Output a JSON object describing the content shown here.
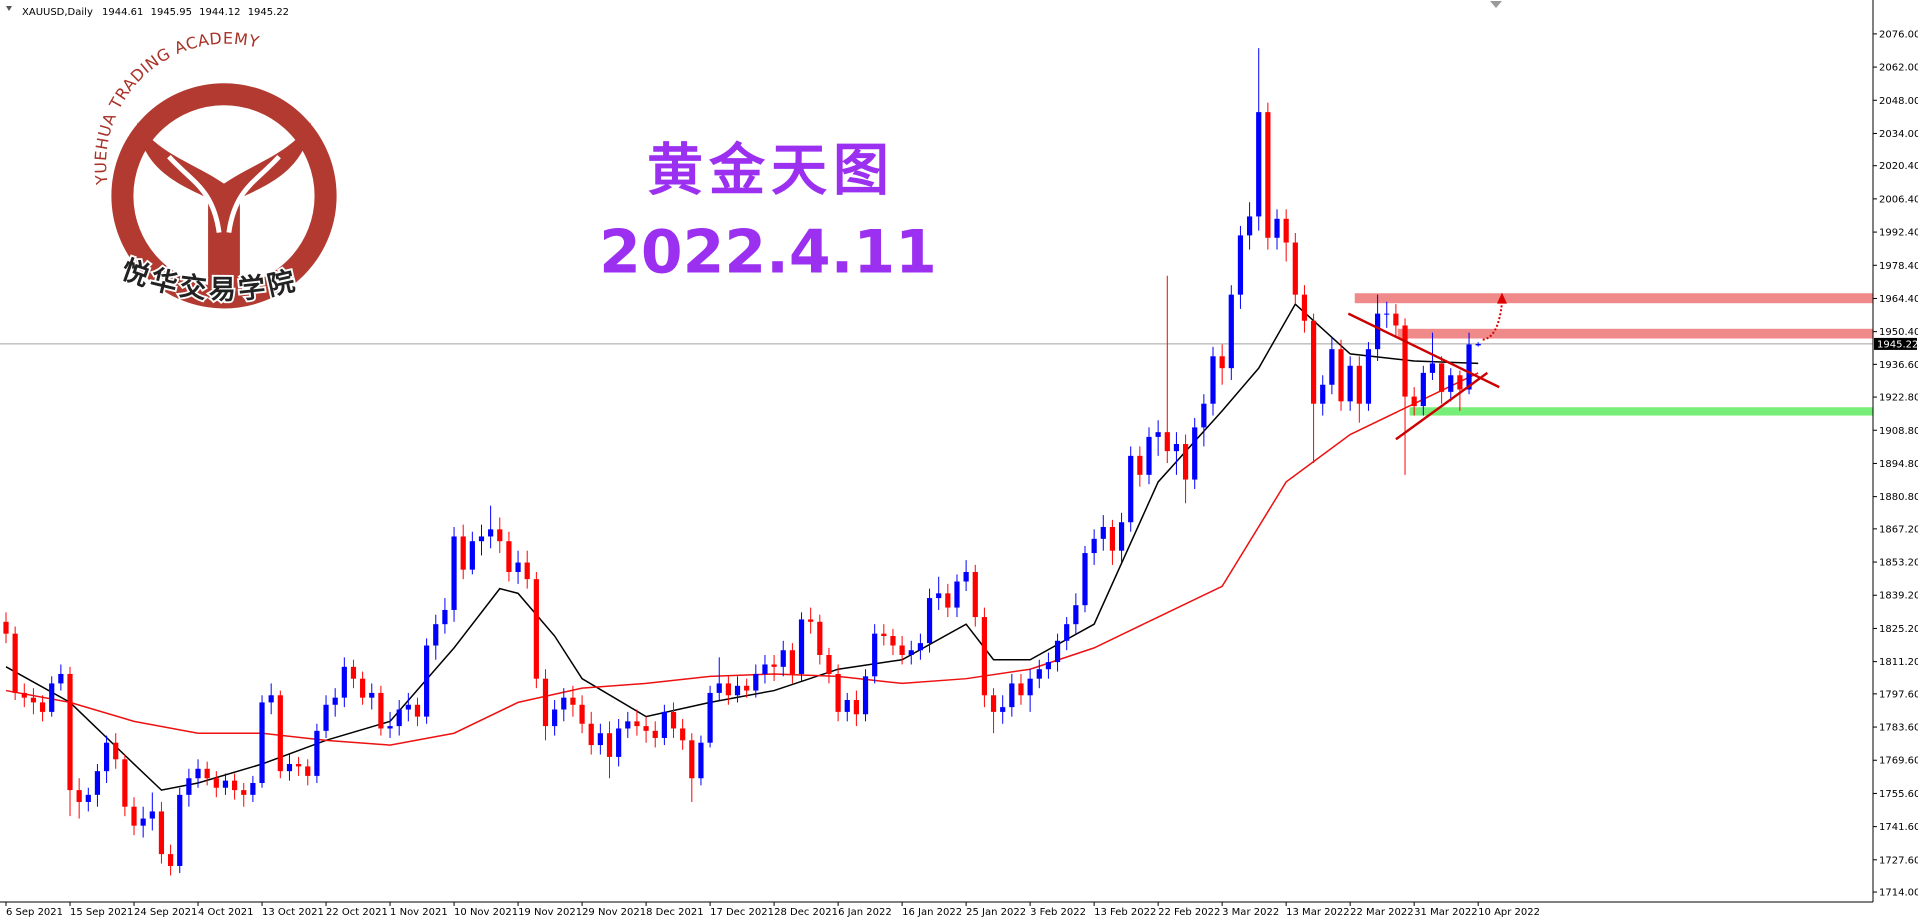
{
  "chart_data": {
    "type": "candlestick",
    "symbol": "XAUUSD,Daily",
    "bull_color": "#0000ff",
    "bear_color": "#ff0000",
    "ylim": [
      1709.8,
      2090.3
    ],
    "yticks": [
      {
        "value": 2076,
        "label": "2076.00"
      },
      {
        "value": 2062,
        "label": "2062.00"
      },
      {
        "value": 2048,
        "label": "2048.00"
      },
      {
        "value": 2034,
        "label": "2034.00"
      },
      {
        "value": 2020.4,
        "label": "2020.40"
      },
      {
        "value": 2006.4,
        "label": "2006.40"
      },
      {
        "value": 1992.4,
        "label": "1992.40"
      },
      {
        "value": 1978.4,
        "label": "1978.40"
      },
      {
        "value": 1964.4,
        "label": "1964.40"
      },
      {
        "value": 1950.4,
        "label": "1950.40"
      },
      {
        "value": 1936.6,
        "label": "1936.60"
      },
      {
        "value": 1922.8,
        "label": "1922.80"
      },
      {
        "value": 1908.8,
        "label": "1908.80"
      },
      {
        "value": 1894.8,
        "label": "1894.80"
      },
      {
        "value": 1880.8,
        "label": "1880.80"
      },
      {
        "value": 1867.2,
        "label": "1867.20"
      },
      {
        "value": 1853.2,
        "label": "1853.20"
      },
      {
        "value": 1839.2,
        "label": "1839.20"
      },
      {
        "value": 1825.2,
        "label": "1825.20"
      },
      {
        "value": 1811.2,
        "label": "1811.20"
      },
      {
        "value": 1797.6,
        "label": "1797.60"
      },
      {
        "value": 1783.6,
        "label": "1783.60"
      },
      {
        "value": 1769.6,
        "label": "1769.60"
      },
      {
        "value": 1755.6,
        "label": "1755.60"
      },
      {
        "value": 1741.6,
        "label": "1741.60"
      },
      {
        "value": 1727.6,
        "label": "1727.60"
      },
      {
        "value": 1714,
        "label": "1714.00"
      }
    ],
    "categories": [
      "6 Sep 2021",
      null,
      null,
      null,
      null,
      null,
      null,
      "15 Sep 2021",
      null,
      null,
      null,
      null,
      null,
      null,
      "24 Sep 2021",
      null,
      null,
      null,
      null,
      null,
      null,
      "4 Oct 2021",
      null,
      null,
      null,
      null,
      null,
      null,
      "13 Oct 2021",
      null,
      null,
      null,
      null,
      null,
      null,
      "22 Oct 2021",
      null,
      null,
      null,
      null,
      null,
      null,
      "1 Nov 2021",
      null,
      null,
      null,
      null,
      null,
      null,
      "10 Nov 2021",
      null,
      null,
      null,
      null,
      null,
      null,
      "19 Nov 2021",
      null,
      null,
      null,
      null,
      null,
      null,
      "29 Nov 2021",
      null,
      null,
      null,
      null,
      null,
      null,
      "8 Dec 2021",
      null,
      null,
      null,
      null,
      null,
      null,
      "17 Dec 2021",
      null,
      null,
      null,
      null,
      null,
      null,
      "28 Dec 2021",
      null,
      null,
      null,
      null,
      null,
      null,
      "6 Jan 2022",
      null,
      null,
      null,
      null,
      null,
      null,
      "16 Jan 2022",
      null,
      null,
      null,
      null,
      null,
      null,
      "25 Jan 2022",
      null,
      null,
      null,
      null,
      null,
      null,
      "3 Feb 2022",
      null,
      null,
      null,
      null,
      null,
      null,
      "13 Feb 2022",
      null,
      null,
      null,
      null,
      null,
      null,
      "22 Feb 2022",
      null,
      null,
      null,
      null,
      null,
      null,
      "3 Mar 2022",
      null,
      null,
      null,
      null,
      null,
      null,
      "13 Mar 2022",
      null,
      null,
      null,
      null,
      null,
      null,
      "22 Mar 2022",
      null,
      null,
      null,
      null,
      null,
      null,
      "31 Mar 2022",
      null,
      null,
      null,
      null,
      null,
      null,
      "10 Apr 2022"
    ],
    "open": [
      1828,
      1823,
      1798,
      1796,
      1794,
      1790,
      1802,
      1806,
      1757,
      1752,
      1755,
      1765,
      1777,
      1770,
      1750,
      1742,
      1745,
      1748,
      1730,
      1725,
      1755,
      1762,
      1766,
      1762,
      1758,
      1761,
      1757,
      1755,
      1760,
      1794,
      1797,
      1765,
      1768,
      1767,
      1763,
      1782,
      1793,
      1796,
      1809,
      1804,
      1796,
      1798,
      1783,
      1784,
      1791,
      1793,
      1788,
      1818,
      1827,
      1833,
      1864,
      1850,
      1862,
      1864,
      1867,
      1862,
      1849,
      1853,
      1846,
      1804,
      1784,
      1791,
      1796,
      1793,
      1785,
      1776,
      1781,
      1771,
      1783,
      1786,
      1784,
      1782,
      1779,
      1790,
      1783,
      1778,
      1762,
      1777,
      1798,
      1802,
      1797,
      1801,
      1799,
      1806,
      1810,
      1809,
      1816,
      1806,
      1829,
      1828,
      1814,
      1806,
      1790,
      1795,
      1789,
      1805,
      1823,
      1822,
      1818,
      1814,
      1816,
      1819,
      1838,
      1840,
      1834,
      1845,
      1849,
      1830,
      1797,
      1790,
      1792,
      1802,
      1797,
      1804,
      1808,
      1811,
      1820,
      1827,
      1835,
      1857,
      1863,
      1868,
      1858,
      1870,
      1898,
      1890,
      1906,
      1908,
      1900,
      1903,
      1888,
      1910,
      1920,
      1940,
      1935,
      1966,
      1991,
      1999,
      2043,
      1990,
      1998,
      1988,
      1966,
      1955,
      1920,
      1928,
      1943,
      1921,
      1936,
      1920,
      1943,
      1958,
      1958,
      1953,
      1923,
      1919,
      1933,
      1937,
      1925,
      1932,
      1926,
      1944.61
    ],
    "high": [
      1832,
      1826,
      1802,
      1800,
      1797,
      1805,
      1810,
      1809,
      1762,
      1758,
      1768,
      1780,
      1781,
      1772,
      1754,
      1750,
      1756,
      1752,
      1734,
      1758,
      1766,
      1770,
      1769,
      1765,
      1764,
      1764,
      1760,
      1763,
      1797,
      1802,
      1799,
      1772,
      1771,
      1770,
      1785,
      1797,
      1800,
      1813,
      1812,
      1807,
      1802,
      1801,
      1790,
      1795,
      1798,
      1796,
      1821,
      1831,
      1838,
      1868,
      1869,
      1866,
      1869,
      1877,
      1872,
      1866,
      1858,
      1858,
      1849,
      1808,
      1795,
      1800,
      1801,
      1797,
      1790,
      1785,
      1786,
      1787,
      1790,
      1791,
      1788,
      1786,
      1793,
      1794,
      1787,
      1781,
      1780,
      1801,
      1813,
      1805,
      1805,
      1804,
      1810,
      1814,
      1814,
      1820,
      1819,
      1832,
      1834,
      1831,
      1817,
      1810,
      1798,
      1799,
      1808,
      1827,
      1827,
      1825,
      1822,
      1820,
      1823,
      1842,
      1847,
      1844,
      1848,
      1854,
      1852,
      1834,
      1800,
      1797,
      1806,
      1806,
      1808,
      1812,
      1815,
      1823,
      1830,
      1840,
      1860,
      1867,
      1873,
      1871,
      1874,
      1902,
      1902,
      1910,
      1913,
      1974,
      1908,
      1907,
      1914,
      1924,
      1944,
      1945,
      1970,
      1995,
      2005,
      2070,
      2047,
      2002,
      2002,
      1992,
      1970,
      1958,
      1932,
      1948,
      1947,
      1940,
      1940,
      1946,
      1966,
      1963,
      1962,
      1956,
      1927,
      1936,
      1950,
      1940,
      1935,
      1934,
      1950,
      1945.95
    ],
    "low": [
      1819,
      1795,
      1792,
      1789,
      1786,
      1788,
      1799,
      1746,
      1745,
      1748,
      1750,
      1760,
      1766,
      1746,
      1738,
      1737,
      1740,
      1726,
      1721,
      1722,
      1750,
      1758,
      1759,
      1754,
      1755,
      1753,
      1750,
      1752,
      1758,
      1789,
      1762,
      1761,
      1763,
      1759,
      1760,
      1779,
      1788,
      1792,
      1800,
      1793,
      1791,
      1780,
      1779,
      1780,
      1786,
      1784,
      1785,
      1812,
      1823,
      1828,
      1846,
      1848,
      1856,
      1859,
      1857,
      1845,
      1844,
      1842,
      1800,
      1778,
      1780,
      1786,
      1788,
      1781,
      1772,
      1772,
      1762,
      1767,
      1779,
      1780,
      1777,
      1775,
      1776,
      1779,
      1774,
      1752,
      1759,
      1775,
      1795,
      1793,
      1794,
      1796,
      1796,
      1802,
      1803,
      1805,
      1802,
      1803,
      1823,
      1810,
      1802,
      1786,
      1786,
      1784,
      1786,
      1802,
      1818,
      1814,
      1810,
      1810,
      1812,
      1815,
      1833,
      1830,
      1830,
      1841,
      1826,
      1792,
      1781,
      1785,
      1788,
      1793,
      1790,
      1800,
      1804,
      1807,
      1816,
      1823,
      1832,
      1852,
      1858,
      1852,
      1853,
      1866,
      1885,
      1886,
      1898,
      1895,
      1890,
      1878,
      1884,
      1902,
      1915,
      1928,
      1930,
      1960,
      1985,
      1993,
      1985,
      1985,
      1980,
      1962,
      1950,
      1895,
      1915,
      1924,
      1917,
      1917,
      1912,
      1917,
      1938,
      1952,
      1948,
      1890,
      1915,
      1915,
      1930,
      1920,
      1921,
      1917,
      1924,
      1944.12
    ],
    "close": [
      1823,
      1798,
      1796,
      1794,
      1790,
      1802,
      1806,
      1757,
      1752,
      1755,
      1765,
      1777,
      1770,
      1750,
      1742,
      1745,
      1748,
      1730,
      1725,
      1755,
      1762,
      1766,
      1762,
      1758,
      1761,
      1757,
      1755,
      1760,
      1794,
      1797,
      1765,
      1768,
      1767,
      1763,
      1782,
      1793,
      1796,
      1809,
      1804,
      1796,
      1798,
      1783,
      1784,
      1791,
      1793,
      1788,
      1818,
      1827,
      1833,
      1864,
      1850,
      1862,
      1864,
      1867,
      1862,
      1849,
      1853,
      1846,
      1804,
      1784,
      1791,
      1796,
      1793,
      1785,
      1776,
      1781,
      1771,
      1783,
      1786,
      1784,
      1782,
      1779,
      1790,
      1783,
      1778,
      1762,
      1777,
      1798,
      1802,
      1797,
      1801,
      1799,
      1806,
      1810,
      1809,
      1816,
      1806,
      1829,
      1828,
      1814,
      1806,
      1790,
      1795,
      1789,
      1805,
      1823,
      1822,
      1818,
      1814,
      1816,
      1819,
      1838,
      1840,
      1834,
      1845,
      1849,
      1830,
      1797,
      1790,
      1792,
      1802,
      1797,
      1804,
      1808,
      1811,
      1820,
      1827,
      1835,
      1857,
      1863,
      1868,
      1858,
      1870,
      1898,
      1890,
      1906,
      1908,
      1900,
      1903,
      1888,
      1910,
      1920,
      1940,
      1935,
      1966,
      1991,
      1999,
      2043,
      1990,
      1998,
      1988,
      1966,
      1955,
      1920,
      1928,
      1943,
      1921,
      1936,
      1920,
      1943,
      1958,
      1958,
      1953,
      1923,
      1919,
      1933,
      1937,
      1925,
      1932,
      1926,
      1945,
      1945.22
    ],
    "ma": [
      {
        "color": "#000000",
        "x": [
          0,
          7,
          14,
          17,
          21,
          28,
          35,
          42,
          49,
          54,
          56,
          60,
          63,
          70,
          77,
          84,
          91,
          98,
          105,
          108,
          112,
          119,
          126,
          133,
          137,
          141,
          147,
          154,
          161
        ],
        "values": [
          1809,
          1794,
          1768,
          1757,
          1760,
          1768,
          1778,
          1786,
          1817,
          1842,
          1840,
          1822,
          1804,
          1788,
          1794,
          1799,
          1808,
          1812,
          1827,
          1812,
          1812,
          1827,
          1887,
          1917,
          1935,
          1962,
          1941,
          1938,
          1937
        ]
      },
      {
        "color": "#ee1111",
        "x": [
          0,
          7,
          14,
          21,
          28,
          35,
          42,
          49,
          56,
          63,
          70,
          77,
          84,
          91,
          98,
          105,
          112,
          119,
          126,
          133,
          140,
          147,
          154,
          161
        ],
        "values": [
          1799,
          1794,
          1786,
          1781,
          1781,
          1778,
          1776,
          1781,
          1794,
          1800,
          1802,
          1805,
          1806,
          1805,
          1802,
          1804,
          1808,
          1817,
          1830,
          1843,
          1887,
          1907,
          1920,
          1933
        ]
      }
    ],
    "zones": [
      {
        "low": 1962.4,
        "high": 1966.6,
        "start": 147.5,
        "color": "#f08a8a"
      },
      {
        "low": 1947.5,
        "high": 1951.6,
        "start": 152.2,
        "color": "#f08a8a"
      },
      {
        "low": 1915,
        "high": 1918.5,
        "start": 153.5,
        "color": "#77ee77"
      }
    ],
    "trendlines": [
      {
        "color": "#cc0000",
        "x": [
          146.8,
          163.3
        ],
        "values": [
          1958,
          1927
        ]
      },
      {
        "color": "#cc0000",
        "x": [
          152,
          162
        ],
        "values": [
          1905,
          1933
        ]
      }
    ],
    "arrow": {
      "color": "#dd0000",
      "x": [
        161.5,
        163.6
      ],
      "values": [
        1947,
        1966
      ]
    },
    "headline": "黄金天图",
    "date": "2022.4.11",
    "logo_top": "YUEHUA TRADING ACADEMY",
    "logo_bottom": "悦华交易学院"
  }
}
